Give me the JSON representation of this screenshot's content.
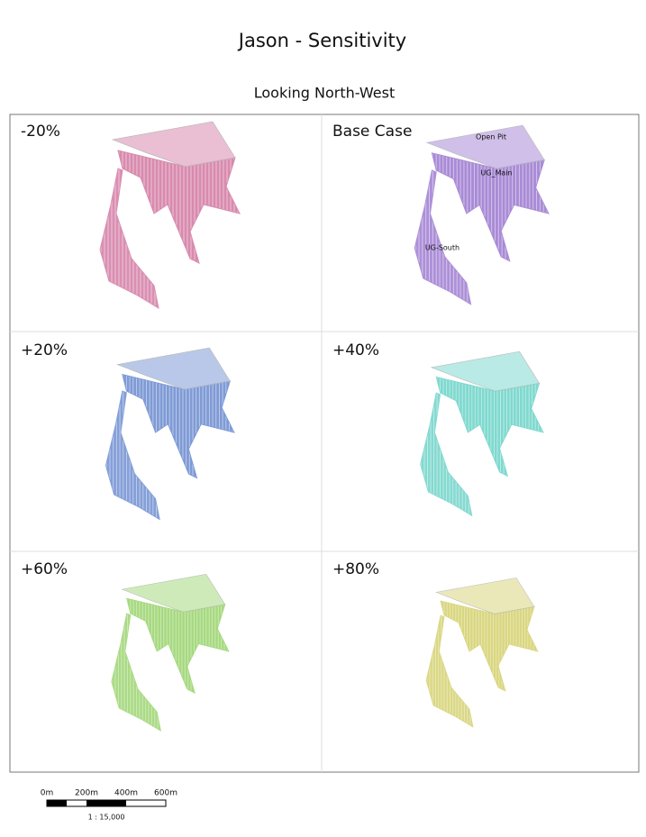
{
  "header": {
    "title": "Jason - Sensitivity",
    "subtitle": "Looking North-West"
  },
  "panels": [
    {
      "label": "-20%",
      "color": "#d98aae"
    },
    {
      "label": "Base Case",
      "color": "#a98bd6"
    },
    {
      "label": "+20%",
      "color": "#7f9bd6"
    },
    {
      "label": "+40%",
      "color": "#7fd9cf"
    },
    {
      "label": "+60%",
      "color": "#a6d97f"
    },
    {
      "label": "+80%",
      "color": "#d9d67f"
    }
  ],
  "annotations": [
    "Open Pit",
    "UG_Main",
    "UG-South"
  ],
  "scale_bar": {
    "labels": [
      "0m",
      "200m",
      "400m",
      "600m"
    ],
    "ratio": "1 : 15,000"
  }
}
